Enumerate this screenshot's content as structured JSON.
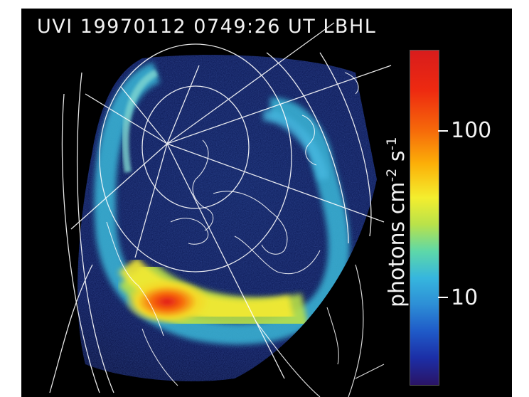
{
  "title": "UVI 19970112 0749:26 UT LBHL",
  "colorbar": {
    "label_base": "photons cm",
    "label_exp1": "-2",
    "label_mid": " s",
    "label_exp2": "-1",
    "ticks": [
      "100",
      "10"
    ],
    "colors": [
      "#d81c1c",
      "#f66a0a",
      "#f4ee2e",
      "#5ed8a8",
      "#2d8ed6",
      "#1c2ea6",
      "#2a1466"
    ]
  }
}
